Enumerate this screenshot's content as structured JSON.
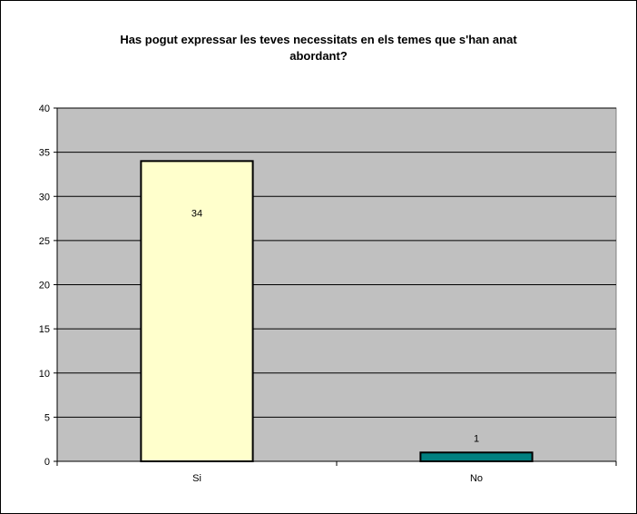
{
  "chart_data": {
    "type": "bar",
    "title_lines": [
      "Has pogut expressar les teves necessitats en els temes que s'han anat",
      "abordant?"
    ],
    "categories": [
      "Si",
      "No"
    ],
    "values": [
      34,
      1
    ],
    "data_labels": [
      "34",
      "1"
    ],
    "ylim": [
      0,
      40
    ],
    "yticks": [
      "0",
      "5",
      "10",
      "15",
      "20",
      "25",
      "30",
      "35",
      "40"
    ],
    "grid": true,
    "bar_colors": [
      "#ffffcc",
      "#008080"
    ],
    "plot_background": "#c0c0c0"
  }
}
